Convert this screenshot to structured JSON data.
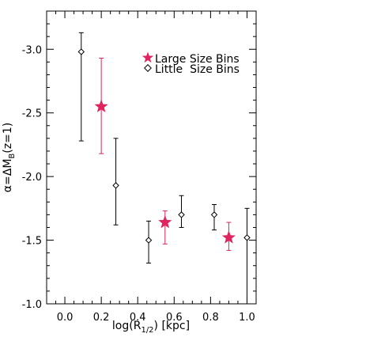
{
  "chart_data": {
    "type": "scatter",
    "xlabel": "log(R",
    "xlabel_sub": "1/2",
    "xlabel_tail": ") [kpc]",
    "ylabel": "α=ΔM",
    "ylabel_sub": "B",
    "ylabel_tail": "(z=1)",
    "xlim": [
      -0.1,
      1.05
    ],
    "ylim": [
      -3.3,
      -1.0
    ],
    "y_inverted": true,
    "x_ticks": [
      "0.0",
      "0.2",
      "0.4",
      "0.6",
      "0.8",
      "1.0"
    ],
    "x_tick_values": [
      0.0,
      0.2,
      0.4,
      0.6,
      0.8,
      1.0
    ],
    "y_ticks": [
      "-3.0",
      "-2.5",
      "-2.0",
      "-1.5",
      "-1.0"
    ],
    "y_tick_values": [
      -3.0,
      -2.5,
      -2.0,
      -1.5,
      -1.0
    ],
    "grid": false,
    "legend_position": "top-right",
    "series": [
      {
        "name": "Large Size Bins",
        "marker": "star",
        "color": "#e0245e",
        "points": [
          {
            "x": 0.2,
            "y": -2.55,
            "ylow": -2.93,
            "yhigh": -2.18
          },
          {
            "x": 0.55,
            "y": -1.64,
            "ylow": -1.73,
            "yhigh": -1.47
          },
          {
            "x": 0.9,
            "y": -1.52,
            "ylow": -1.64,
            "yhigh": -1.42
          }
        ]
      },
      {
        "name": "Little  Size Bins",
        "marker": "diamond",
        "color": "#000000",
        "points": [
          {
            "x": 0.09,
            "y": -2.98,
            "ylow": -3.13,
            "yhigh": -2.28
          },
          {
            "x": 0.28,
            "y": -1.93,
            "ylow": -2.3,
            "yhigh": -1.62
          },
          {
            "x": 0.46,
            "y": -1.5,
            "ylow": -1.65,
            "yhigh": -1.32
          },
          {
            "x": 0.64,
            "y": -1.7,
            "ylow": -1.85,
            "yhigh": -1.6
          },
          {
            "x": 0.82,
            "y": -1.7,
            "ylow": -1.78,
            "yhigh": -1.58
          },
          {
            "x": 1.0,
            "y": -1.52,
            "ylow": -1.75,
            "yhigh": -1.0
          }
        ]
      }
    ]
  }
}
